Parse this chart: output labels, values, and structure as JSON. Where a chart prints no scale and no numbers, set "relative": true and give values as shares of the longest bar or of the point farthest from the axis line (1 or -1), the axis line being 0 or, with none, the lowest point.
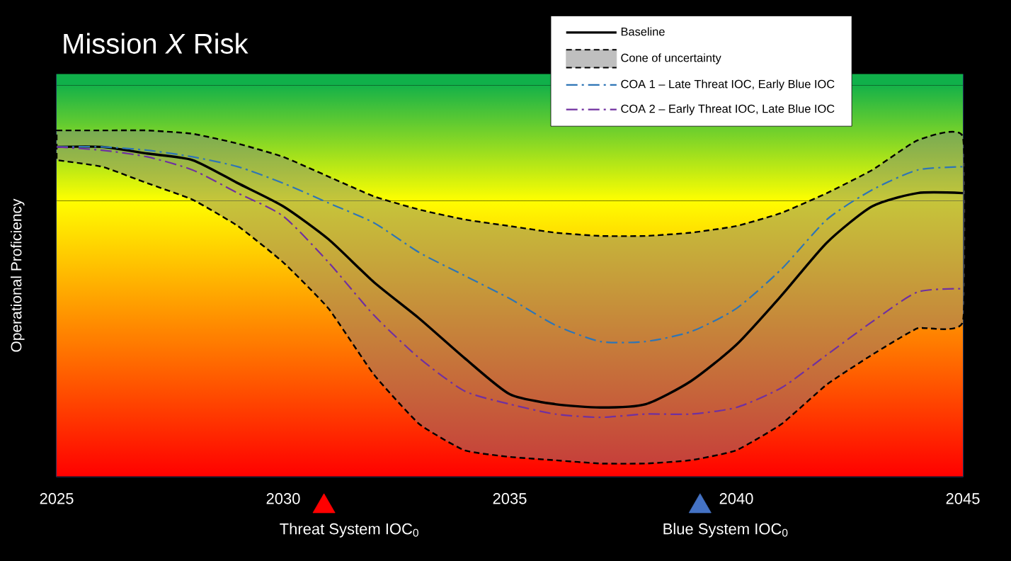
{
  "chart_data": {
    "type": "line",
    "relative": true,
    "title": "Mission *X* Risk",
    "ylabel": "Operational Proficiency",
    "x": [
      2025,
      2026,
      2027,
      2028,
      2029,
      2030,
      2031,
      2032,
      2033,
      2034,
      2035,
      2036,
      2037,
      2038,
      2039,
      2040,
      2041,
      2042,
      2043,
      2044,
      2045
    ],
    "xlim": [
      2025,
      2045
    ],
    "xticks": [
      2025,
      2030,
      2035,
      2040,
      2045
    ],
    "legend": "top right",
    "annotations": [
      "Threat System IOC$_{0}$",
      "Blue System IOC$_{0}$",
      "Cone of uncertainty"
    ],
    "bands": [
      {
        "axis": "y",
        "from": 0,
        "to": 0.84,
        "color": "#ff0000"
      },
      {
        "axis": "y",
        "from": 0.84,
        "to": 1.19,
        "color": "#ffff00"
      },
      {
        "axis": "y",
        "from": 1.19,
        "to": 1.22,
        "color": "#10b04a"
      }
    ],
    "series": [
      {
        "name": "Baseline",
        "color": "#000000",
        "line_style": "solid",
        "values": [
          1.0,
          1.0,
          0.98,
          0.96,
          0.89,
          0.82,
          0.72,
          0.59,
          0.48,
          0.36,
          0.25,
          0.22,
          0.21,
          0.22,
          0.29,
          0.4,
          0.55,
          0.71,
          0.82,
          0.86,
          0.86
        ],
        "lower": [
          0.96,
          0.94,
          0.89,
          0.84,
          0.76,
          0.65,
          0.51,
          0.31,
          0.16,
          0.08,
          0.06,
          0.05,
          0.04,
          0.04,
          0.05,
          0.08,
          0.16,
          0.28,
          0.37,
          0.45,
          0.47
        ],
        "upper": [
          1.05,
          1.05,
          1.05,
          1.04,
          1.01,
          0.97,
          0.91,
          0.85,
          0.81,
          0.78,
          0.76,
          0.74,
          0.73,
          0.73,
          0.74,
          0.76,
          0.8,
          0.86,
          0.93,
          1.02,
          1.03
        ]
      },
      {
        "name": "COA 1 – Late Threat IOC, Early Blue IOC",
        "color": "#2e75b6",
        "line_style": "dashdot",
        "values": [
          1.0,
          1.0,
          0.99,
          0.97,
          0.94,
          0.89,
          0.83,
          0.77,
          0.68,
          0.61,
          0.54,
          0.46,
          0.41,
          0.41,
          0.44,
          0.51,
          0.63,
          0.78,
          0.87,
          0.93,
          0.94
        ]
      },
      {
        "name": "COA 2 – Early Threat IOC, Late Blue IOC",
        "color": "#7030a0",
        "line_style": "dashdot",
        "values": [
          1.0,
          0.99,
          0.97,
          0.93,
          0.86,
          0.79,
          0.65,
          0.49,
          0.36,
          0.26,
          0.22,
          0.19,
          0.18,
          0.19,
          0.19,
          0.21,
          0.27,
          0.37,
          0.47,
          0.56,
          0.57
        ]
      },
      {
        "type": "scatter",
        "marker": "triangle",
        "x": [
          2030.9,
          2039.2
        ],
        "values": [
          -0.09,
          -0.09
        ],
        "colors": [
          "#ff0000",
          "#4472c4"
        ]
      }
    ]
  }
}
